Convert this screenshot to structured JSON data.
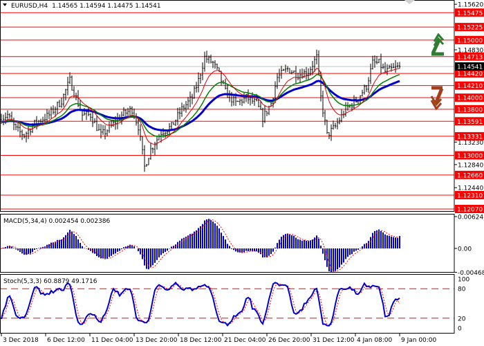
{
  "header": {
    "symbol": "EURUSD,H4",
    "ohlc": "1.14565 1.14594 1.14475 1.14541"
  },
  "colors": {
    "level": "#ff0000",
    "bars": "#000000",
    "ma_fast": "#e00000",
    "ma_mid": "#008000",
    "ma_slow": "#0000cc",
    "macd_hist": "#0000cc",
    "signal": "#ff0000",
    "up_arrow": "#2e7d32",
    "down_arrow": "#a0401c"
  },
  "chart_data": [
    {
      "type": "line",
      "title": "EURUSD,H4",
      "ylim": [
        1.12,
        1.1565
      ],
      "current_price": 1.14541,
      "current_price_label": "1.14541",
      "levels": [
        {
          "value": 1.15475,
          "label": "1.15475"
        },
        {
          "value": 1.15225,
          "label": "1.15225"
        },
        {
          "value": 1.15,
          "label": "1.15000"
        },
        {
          "value": 1.14713,
          "label": "1.14713"
        },
        {
          "value": 1.1442,
          "label": "1.14420"
        },
        {
          "value": 1.1421,
          "label": "1.14210"
        },
        {
          "value": 1.14,
          "label": "1.14000"
        },
        {
          "value": 1.138,
          "label": "1.13800"
        },
        {
          "value": 1.13591,
          "label": "1.13591"
        },
        {
          "value": 1.13331,
          "label": "1.13331"
        },
        {
          "value": 1.13,
          "label": "1.13000"
        },
        {
          "value": 1.1266,
          "label": "1.12660"
        },
        {
          "value": 1.1231,
          "label": "1.12310"
        },
        {
          "value": 1.1207,
          "label": "1.12070"
        }
      ],
      "y_ticks": [
        {
          "value": 1.1562,
          "label": "1.15620"
        },
        {
          "value": 1.1483,
          "label": "1.14830"
        },
        {
          "value": 1.1323,
          "label": "1.13230"
        },
        {
          "value": 1.1284,
          "label": "1.12840"
        },
        {
          "value": 1.1244,
          "label": "1.12440"
        }
      ],
      "price_path": [
        [
          0,
          1.1365
        ],
        [
          3,
          1.137
        ],
        [
          7,
          1.1345
        ],
        [
          11,
          1.1335
        ],
        [
          16,
          1.1355
        ],
        [
          23,
          1.137
        ],
        [
          29,
          1.1395
        ],
        [
          33,
          1.143
        ],
        [
          36,
          1.14
        ],
        [
          39,
          1.137
        ],
        [
          43,
          1.137
        ],
        [
          48,
          1.1335
        ],
        [
          53,
          1.135
        ],
        [
          58,
          1.137
        ],
        [
          63,
          1.138
        ],
        [
          66,
          1.135
        ],
        [
          69,
          1.128
        ],
        [
          72,
          1.131
        ],
        [
          77,
          1.134
        ],
        [
          82,
          1.135
        ],
        [
          87,
          1.138
        ],
        [
          92,
          1.14
        ],
        [
          95,
          1.143
        ],
        [
          98,
          1.147
        ],
        [
          102,
          1.146
        ],
        [
          105,
          1.144
        ],
        [
          108,
          1.141
        ],
        [
          113,
          1.139
        ],
        [
          118,
          1.14
        ],
        [
          123,
          1.139
        ],
        [
          126,
          1.1365
        ],
        [
          130,
          1.139
        ],
        [
          133,
          1.1435
        ],
        [
          138,
          1.145
        ],
        [
          143,
          1.144
        ],
        [
          148,
          1.1445
        ],
        [
          152,
          1.147
        ],
        [
          154,
          1.14
        ],
        [
          157,
          1.1335
        ],
        [
          161,
          1.135
        ],
        [
          166,
          1.138
        ],
        [
          171,
          1.1395
        ],
        [
          176,
          1.142
        ],
        [
          179,
          1.146
        ],
        [
          182,
          1.146
        ],
        [
          185,
          1.1445
        ],
        [
          189,
          1.145
        ],
        [
          192,
          1.1454
        ]
      ],
      "x_tick_labels": [
        "3 Dec 2018",
        "6 Dec 12:00",
        "11 Dec 04:00",
        "13 Dec 20:00",
        "18 Dec 12:00",
        "21 Dec 04:00",
        "26 Dec 20:00",
        "31 Dec 12:00",
        "4 Jan 08:00",
        "9 Jan 00:00"
      ]
    },
    {
      "type": "bar",
      "title": "MACD(5,34,4) 0.002454 0.002386",
      "ylim": [
        -0.004686,
        0.006243
      ],
      "y_ticks": [
        {
          "value": 0.006243,
          "label": "0.006243"
        },
        {
          "value": 0,
          "label": "0.00"
        },
        {
          "value": -0.004686,
          "label": "-0.004686"
        }
      ],
      "last_macd": 0.002454,
      "last_signal": 0.002386
    },
    {
      "type": "line",
      "title": "Stoch(5,3,3) 60.8879 49.1716",
      "ylim": [
        0,
        100
      ],
      "y_ticks": [
        {
          "value": 100,
          "label": "100"
        },
        {
          "value": 80,
          "label": "80"
        },
        {
          "value": 20,
          "label": "20"
        },
        {
          "value": 0,
          "label": "0"
        }
      ],
      "levels": [
        80,
        20
      ],
      "last_k": 60.8879,
      "last_d": 49.1716
    }
  ]
}
